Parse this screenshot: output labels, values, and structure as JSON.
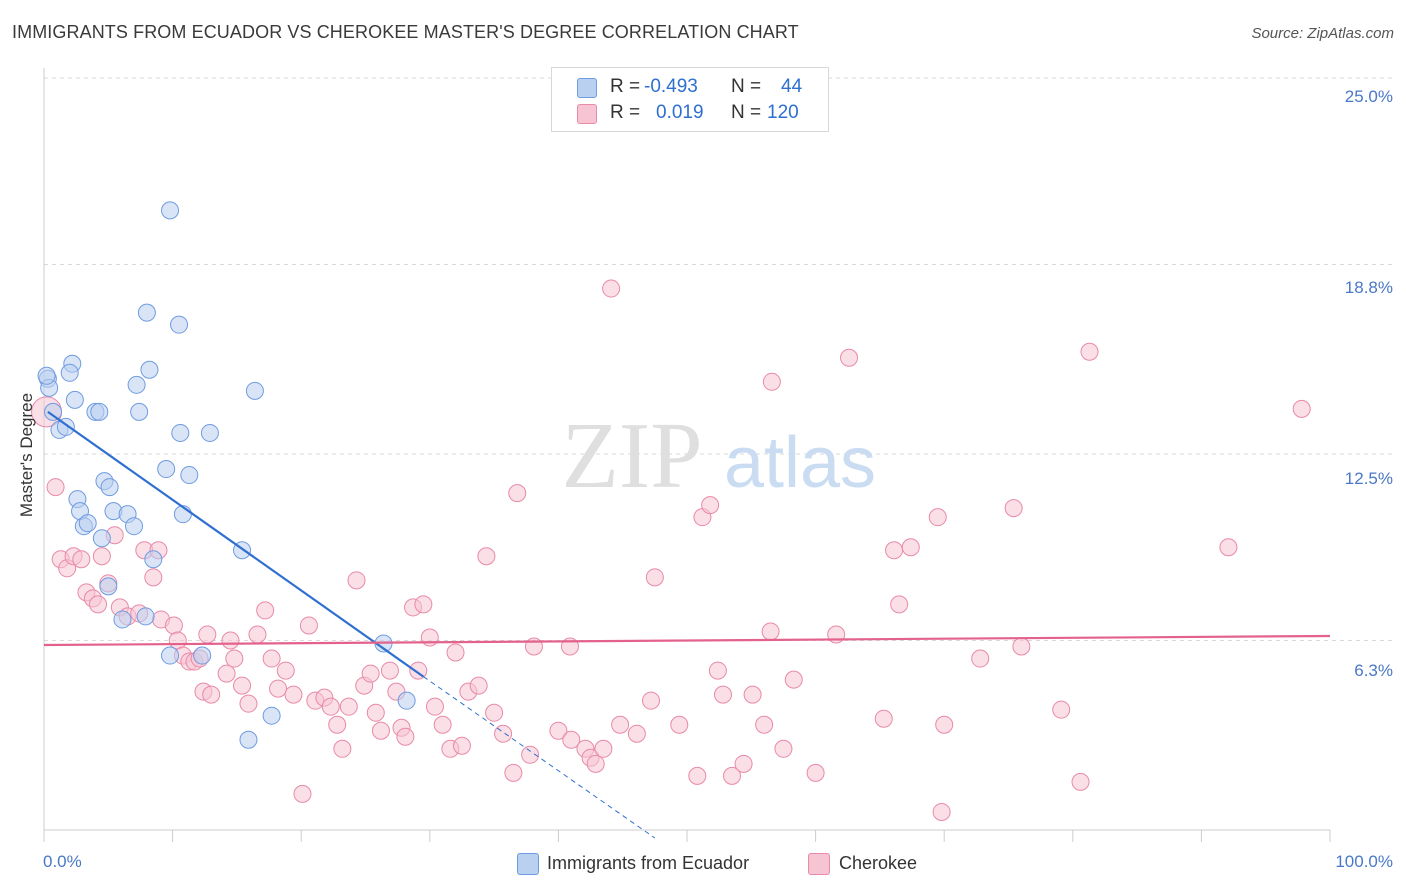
{
  "title": "IMMIGRANTS FROM ECUADOR VS CHEROKEE MASTER'S DEGREE CORRELATION CHART",
  "source": "Source: ZipAtlas.com",
  "watermark": {
    "zip": "ZIP",
    "atlas": "atlas"
  },
  "colors": {
    "blue_fill": "#b9d0f0",
    "blue_stroke": "#6f9be0",
    "blue_line": "#2f6fd0",
    "pink_fill": "#f7c4d4",
    "pink_stroke": "#e88aa8",
    "pink_line": "#e3628c",
    "grid": "#d9d9d9",
    "axis": "#cccccc",
    "tick_text": "#4a78c8"
  },
  "stats": [
    {
      "r_label": "R =",
      "r_value": "-0.493",
      "n_label": "N =",
      "n_value": "44"
    },
    {
      "r_label": "R =",
      "r_value": "0.019",
      "n_label": "N =",
      "n_value": "120"
    }
  ],
  "legend": [
    "Immigrants from Ecuador",
    "Cherokee"
  ],
  "chart_data": {
    "type": "scatter",
    "title": "IMMIGRANTS FROM ECUADOR VS CHEROKEE MASTER'S DEGREE CORRELATION CHART",
    "xlabel": "",
    "ylabel": "Master's Degree",
    "xlim": [
      0,
      100
    ],
    "ylim": [
      0,
      25
    ],
    "x_tick_labels": [
      "0.0%",
      "100.0%"
    ],
    "y_ticks": [
      6.3,
      12.5,
      18.8,
      25.0
    ],
    "y_tick_labels": [
      "6.3%",
      "12.5%",
      "18.8%",
      "25.0%"
    ],
    "grid": true,
    "series": [
      {
        "name": "Immigrants from Ecuador",
        "color": "blue",
        "r": -0.493,
        "n": 44,
        "trend": {
          "x": [
            0.3,
            29.5
          ],
          "y": [
            13.9,
            5.1
          ],
          "dashed_to": [
            47.5,
            0
          ]
        },
        "points": [
          [
            0.3,
            15.0
          ],
          [
            0.4,
            14.7
          ],
          [
            0.7,
            13.9
          ],
          [
            1.2,
            13.3
          ],
          [
            1.7,
            13.4
          ],
          [
            2.2,
            15.5
          ],
          [
            2.0,
            15.2
          ],
          [
            2.4,
            14.3
          ],
          [
            2.6,
            11.0
          ],
          [
            2.8,
            10.6
          ],
          [
            3.1,
            10.1
          ],
          [
            3.4,
            10.2
          ],
          [
            4.0,
            13.9
          ],
          [
            4.3,
            13.9
          ],
          [
            4.5,
            9.7
          ],
          [
            4.7,
            11.6
          ],
          [
            5.1,
            11.4
          ],
          [
            5.4,
            10.6
          ],
          [
            5.0,
            8.1
          ],
          [
            6.1,
            7.0
          ],
          [
            6.5,
            10.5
          ],
          [
            7.0,
            10.1
          ],
          [
            7.4,
            13.9
          ],
          [
            7.2,
            14.8
          ],
          [
            7.9,
            7.1
          ],
          [
            8.0,
            17.2
          ],
          [
            8.2,
            15.3
          ],
          [
            8.5,
            9.0
          ],
          [
            9.5,
            12.0
          ],
          [
            9.8,
            20.6
          ],
          [
            10.5,
            16.8
          ],
          [
            10.6,
            13.2
          ],
          [
            10.8,
            10.5
          ],
          [
            11.3,
            11.8
          ],
          [
            12.9,
            13.2
          ],
          [
            12.3,
            5.8
          ],
          [
            9.8,
            5.8
          ],
          [
            15.4,
            9.3
          ],
          [
            16.4,
            14.6
          ],
          [
            15.9,
            3.0
          ],
          [
            17.7,
            3.8
          ],
          [
            26.4,
            6.2
          ],
          [
            28.2,
            4.3
          ],
          [
            0.2,
            15.1
          ]
        ]
      },
      {
        "name": "Cherokee",
        "color": "pink",
        "r": 0.019,
        "n": 120,
        "trend": {
          "x": [
            0,
            100
          ],
          "y": [
            6.15,
            6.45
          ]
        },
        "points": [
          [
            0.2,
            13.9
          ],
          [
            0.9,
            11.4
          ],
          [
            1.3,
            9.0
          ],
          [
            1.8,
            8.7
          ],
          [
            2.3,
            9.1
          ],
          [
            2.9,
            9.0
          ],
          [
            3.3,
            7.9
          ],
          [
            3.8,
            7.7
          ],
          [
            4.2,
            7.5
          ],
          [
            4.5,
            9.1
          ],
          [
            5.0,
            8.2
          ],
          [
            5.5,
            9.8
          ],
          [
            5.9,
            7.4
          ],
          [
            6.5,
            7.1
          ],
          [
            7.4,
            7.2
          ],
          [
            7.8,
            9.3
          ],
          [
            8.5,
            8.4
          ],
          [
            8.9,
            9.3
          ],
          [
            9.1,
            7.0
          ],
          [
            10.1,
            6.8
          ],
          [
            10.4,
            6.3
          ],
          [
            10.8,
            5.8
          ],
          [
            11.3,
            5.6
          ],
          [
            11.7,
            5.6
          ],
          [
            12.1,
            5.7
          ],
          [
            12.4,
            4.6
          ],
          [
            12.7,
            6.5
          ],
          [
            13.0,
            4.5
          ],
          [
            14.2,
            5.2
          ],
          [
            14.5,
            6.3
          ],
          [
            14.8,
            5.7
          ],
          [
            15.4,
            4.8
          ],
          [
            15.9,
            4.2
          ],
          [
            16.6,
            6.5
          ],
          [
            17.2,
            7.3
          ],
          [
            17.7,
            5.7
          ],
          [
            18.2,
            4.7
          ],
          [
            18.8,
            5.3
          ],
          [
            19.4,
            4.5
          ],
          [
            20.1,
            1.2
          ],
          [
            20.6,
            6.8
          ],
          [
            21.1,
            4.3
          ],
          [
            21.8,
            4.4
          ],
          [
            22.3,
            4.1
          ],
          [
            22.8,
            3.5
          ],
          [
            23.2,
            2.7
          ],
          [
            23.7,
            4.1
          ],
          [
            24.3,
            8.3
          ],
          [
            24.9,
            4.8
          ],
          [
            25.4,
            5.2
          ],
          [
            25.8,
            3.9
          ],
          [
            26.2,
            3.3
          ],
          [
            26.9,
            5.3
          ],
          [
            27.4,
            4.6
          ],
          [
            27.8,
            3.4
          ],
          [
            28.1,
            3.1
          ],
          [
            28.7,
            7.4
          ],
          [
            29.1,
            5.3
          ],
          [
            29.5,
            7.5
          ],
          [
            30.0,
            6.4
          ],
          [
            30.4,
            4.1
          ],
          [
            31.0,
            3.5
          ],
          [
            31.6,
            2.7
          ],
          [
            32.0,
            5.9
          ],
          [
            32.5,
            2.8
          ],
          [
            33.0,
            4.6
          ],
          [
            33.8,
            4.8
          ],
          [
            34.4,
            9.1
          ],
          [
            35.0,
            3.9
          ],
          [
            35.7,
            3.2
          ],
          [
            36.5,
            1.9
          ],
          [
            36.8,
            11.2
          ],
          [
            37.8,
            2.5
          ],
          [
            38.1,
            6.1
          ],
          [
            40.0,
            3.3
          ],
          [
            40.9,
            6.1
          ],
          [
            41.0,
            3.0
          ],
          [
            42.1,
            2.7
          ],
          [
            42.5,
            2.4
          ],
          [
            42.9,
            2.2
          ],
          [
            43.5,
            2.7
          ],
          [
            44.1,
            18.0
          ],
          [
            44.8,
            3.5
          ],
          [
            46.1,
            3.2
          ],
          [
            47.2,
            4.3
          ],
          [
            47.5,
            8.4
          ],
          [
            49.4,
            3.5
          ],
          [
            50.8,
            1.8
          ],
          [
            51.2,
            10.4
          ],
          [
            51.8,
            10.8
          ],
          [
            52.4,
            5.3
          ],
          [
            52.8,
            4.5
          ],
          [
            53.5,
            1.8
          ],
          [
            54.4,
            2.2
          ],
          [
            55.1,
            4.5
          ],
          [
            56.0,
            3.5
          ],
          [
            56.5,
            6.6
          ],
          [
            56.6,
            14.9
          ],
          [
            57.5,
            2.7
          ],
          [
            58.3,
            5.0
          ],
          [
            60.0,
            1.9
          ],
          [
            61.6,
            6.5
          ],
          [
            62.6,
            15.7
          ],
          [
            65.3,
            3.7
          ],
          [
            66.1,
            9.3
          ],
          [
            66.5,
            7.5
          ],
          [
            67.4,
            9.4
          ],
          [
            69.5,
            10.4
          ],
          [
            69.8,
            0.6
          ],
          [
            70.0,
            3.5
          ],
          [
            72.8,
            5.7
          ],
          [
            75.4,
            10.7
          ],
          [
            76.0,
            6.1
          ],
          [
            79.1,
            4.0
          ],
          [
            80.6,
            1.6
          ],
          [
            81.3,
            15.9
          ],
          [
            92.1,
            9.4
          ],
          [
            97.8,
            14.0
          ]
        ]
      }
    ]
  }
}
